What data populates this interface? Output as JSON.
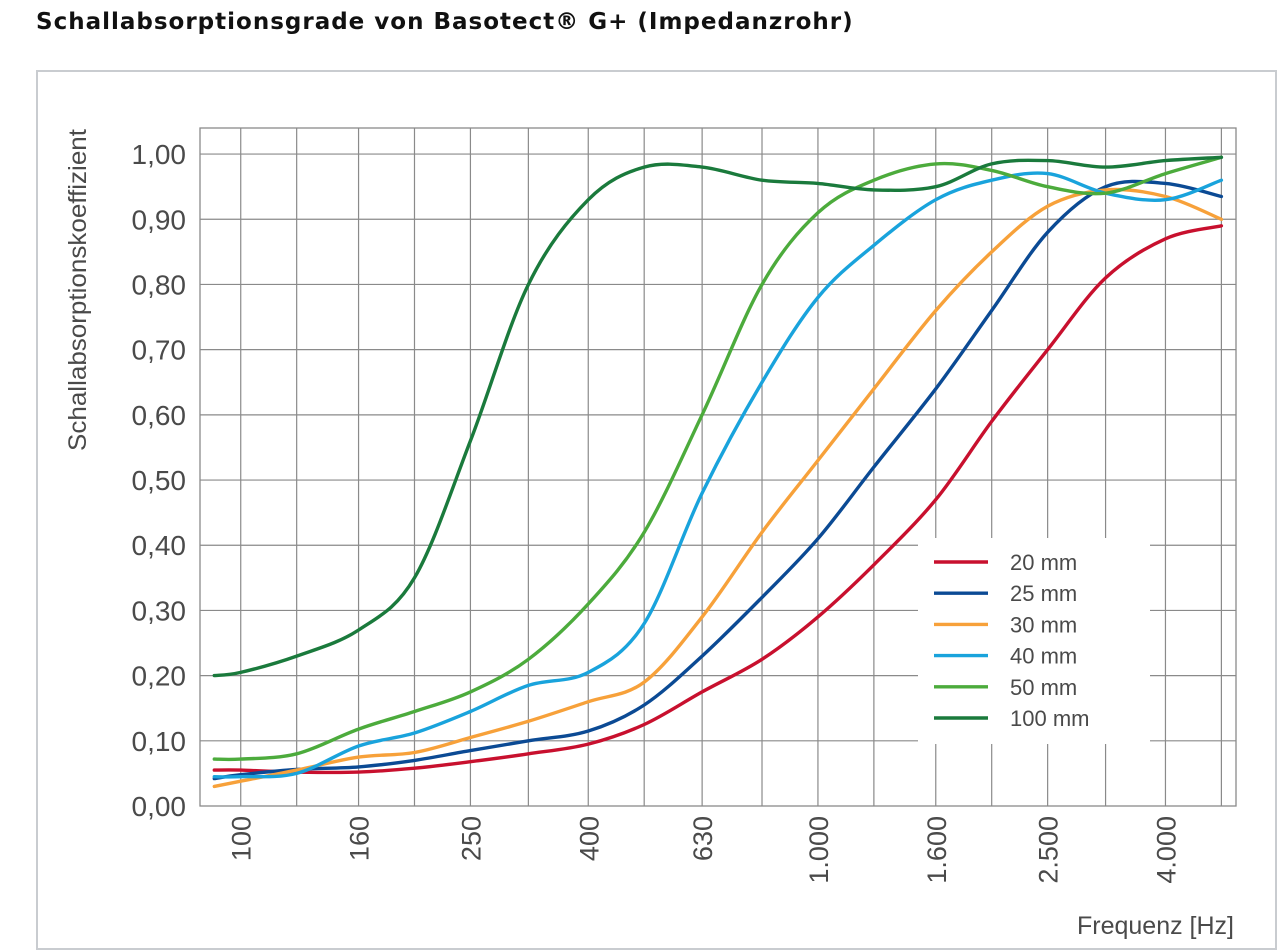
{
  "page": {
    "title": "Schallabsorptionsgrade von Basotect® G+ (Impedanzrohr)"
  },
  "colors": {
    "grid": "#8a8a8a",
    "frame": "#c9ccd0",
    "text": "#4a4a4a",
    "20mm": "#c8102e",
    "25mm": "#0b4a94",
    "30mm": "#f7a13a",
    "40mm": "#19a3dc",
    "50mm": "#4cab3c",
    "100mm": "#1a7a3c"
  },
  "chart_data": {
    "type": "line",
    "title": "",
    "xlabel": "Frequenz [Hz]",
    "ylabel": "Schallabsorptionskoeffizient",
    "x_scale": "log",
    "x_tick_labels": [
      "100",
      "160",
      "250",
      "400",
      "630",
      "1.000",
      "1.600",
      "2.500",
      "4.000"
    ],
    "x_tick_values": [
      100,
      160,
      250,
      400,
      630,
      1000,
      1600,
      2500,
      4000
    ],
    "x_grid_values": [
      100,
      125,
      160,
      200,
      250,
      315,
      400,
      500,
      630,
      800,
      1000,
      1250,
      1600,
      2000,
      2500,
      3150,
      4000,
      5000
    ],
    "xlim": [
      85,
      5300
    ],
    "y_tick_labels": [
      "0,00",
      "0,10",
      "0,20",
      "0,30",
      "0,40",
      "0,50",
      "0,60",
      "0,70",
      "0,80",
      "0,90",
      "1,00"
    ],
    "y_tick_values": [
      0,
      0.1,
      0.2,
      0.3,
      0.4,
      0.5,
      0.6,
      0.7,
      0.8,
      0.9,
      1.0
    ],
    "ylim": [
      0,
      1.04
    ],
    "grid": true,
    "legend_position": "lower-right",
    "x": [
      90,
      100,
      125,
      160,
      200,
      250,
      315,
      400,
      500,
      630,
      800,
      1000,
      1250,
      1600,
      2000,
      2500,
      3150,
      4000,
      5000
    ],
    "series": [
      {
        "name": "20 mm",
        "color_key": "20mm",
        "values": [
          0.055,
          0.055,
          0.052,
          0.052,
          0.058,
          0.068,
          0.08,
          0.095,
          0.125,
          0.175,
          0.225,
          0.29,
          0.37,
          0.47,
          0.59,
          0.7,
          0.81,
          0.87,
          0.89
        ]
      },
      {
        "name": "25 mm",
        "color_key": "25mm",
        "values": [
          0.042,
          0.048,
          0.056,
          0.06,
          0.07,
          0.085,
          0.1,
          0.115,
          0.155,
          0.23,
          0.32,
          0.41,
          0.52,
          0.64,
          0.76,
          0.88,
          0.95,
          0.955,
          0.935
        ]
      },
      {
        "name": "30 mm",
        "color_key": "30mm",
        "values": [
          0.03,
          0.038,
          0.055,
          0.075,
          0.082,
          0.105,
          0.13,
          0.16,
          0.19,
          0.29,
          0.42,
          0.53,
          0.64,
          0.76,
          0.85,
          0.92,
          0.945,
          0.935,
          0.9
        ]
      },
      {
        "name": "40 mm",
        "color_key": "40mm",
        "values": [
          0.045,
          0.045,
          0.05,
          0.092,
          0.112,
          0.145,
          0.185,
          0.205,
          0.28,
          0.48,
          0.65,
          0.78,
          0.86,
          0.93,
          0.96,
          0.97,
          0.94,
          0.93,
          0.96
        ]
      },
      {
        "name": "50 mm",
        "color_key": "50mm",
        "values": [
          0.072,
          0.072,
          0.08,
          0.118,
          0.145,
          0.175,
          0.225,
          0.31,
          0.42,
          0.6,
          0.8,
          0.91,
          0.96,
          0.985,
          0.975,
          0.95,
          0.94,
          0.97,
          0.995
        ]
      },
      {
        "name": "100 mm",
        "color_key": "100mm",
        "values": [
          0.2,
          0.205,
          0.23,
          0.27,
          0.35,
          0.56,
          0.8,
          0.93,
          0.98,
          0.98,
          0.96,
          0.955,
          0.945,
          0.95,
          0.985,
          0.99,
          0.98,
          0.99,
          0.995
        ]
      }
    ]
  }
}
